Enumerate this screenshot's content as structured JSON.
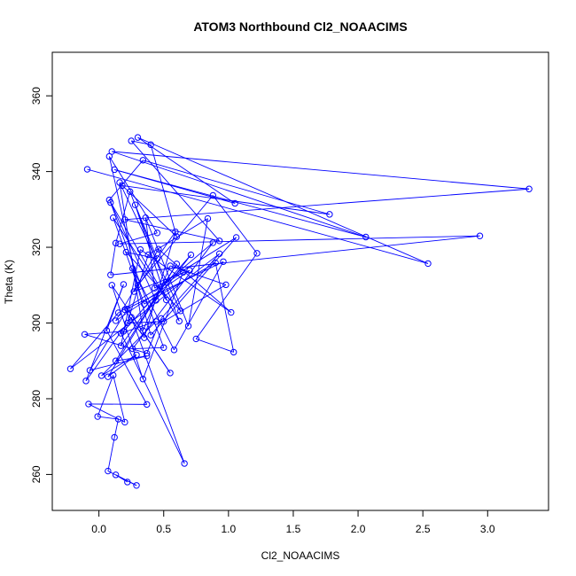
{
  "chart_data": {
    "type": "scatter",
    "title": "ATOM3 Northbound Cl2_NOAACIMS",
    "xlabel": "Cl2_NOAACIMS",
    "ylabel": "Theta (K)",
    "xlim": [
      -0.36,
      3.47
    ],
    "ylim": [
      250.5,
      371.5
    ],
    "xticks": [
      0.0,
      0.5,
      1.0,
      1.5,
      2.0,
      2.5,
      3.0
    ],
    "xtick_labels": [
      "0.0",
      "0.5",
      "1.0",
      "1.5",
      "2.0",
      "2.5",
      "3.0"
    ],
    "yticks": [
      260,
      280,
      300,
      320,
      340,
      360
    ],
    "ytick_labels": [
      "260",
      "280",
      "300",
      "320",
      "340",
      "360"
    ],
    "series_color": "#0000ff",
    "markers": "open circles connected by lines",
    "series": [
      {
        "points": [
          [
            -0.09,
            340.6
          ],
          [
            2.54,
            315.7
          ],
          [
            0.3,
            349.0
          ],
          [
            1.05,
            331.6
          ],
          [
            0.12,
            340.5
          ],
          [
            2.06,
            322.7
          ],
          [
            0.1,
            345.3
          ],
          [
            3.32,
            335.4
          ],
          [
            0.2,
            327.3
          ],
          [
            0.93,
            321.7
          ],
          [
            0.25,
            348.1
          ],
          [
            0.4,
            347.1
          ],
          [
            0.6,
            322.8
          ],
          [
            0.18,
            336.3
          ],
          [
            1.78,
            328.7
          ],
          [
            0.34,
            343.0
          ],
          [
            0.08,
            332.5
          ],
          [
            0.62,
            300.5
          ],
          [
            0.24,
            334.7
          ],
          [
            0.13,
            321.1
          ],
          [
            0.09,
            312.7
          ],
          [
            2.94,
            323.0
          ],
          [
            0.16,
            320.9
          ],
          [
            0.45,
            323.8
          ],
          [
            0.08,
            344.0
          ],
          [
            0.3,
            310.0
          ],
          [
            0.88,
            333.7
          ],
          [
            1.22,
            318.4
          ],
          [
            0.75,
            295.8
          ],
          [
            1.04,
            292.3
          ],
          [
            0.9,
            315.9
          ],
          [
            0.35,
            305.0
          ],
          [
            0.11,
            327.8
          ],
          [
            0.52,
            306.1
          ],
          [
            0.28,
            331.2
          ],
          [
            0.45,
            317.0
          ],
          [
            0.21,
            318.7
          ],
          [
            0.63,
            303.2
          ],
          [
            0.16,
            337.1
          ],
          [
            0.34,
            298.0
          ],
          [
            0.55,
            315.1
          ],
          [
            0.98,
            310.1
          ],
          [
            0.5,
            300.4
          ],
          [
            0.22,
            300.0
          ],
          [
            0.38,
            318.0
          ],
          [
            0.84,
            327.6
          ],
          [
            0.69,
            299.2
          ],
          [
            0.36,
            327.8
          ],
          [
            0.43,
            309.2
          ],
          [
            1.06,
            322.6
          ],
          [
            0.4,
            296.8
          ],
          [
            0.26,
            314.4
          ],
          [
            0.58,
            292.9
          ],
          [
            0.96,
            316.2
          ],
          [
            0.2,
            303.5
          ],
          [
            0.35,
            296.1
          ],
          [
            0.59,
            324.1
          ],
          [
            0.27,
            308.3
          ],
          [
            0.7,
            313.9
          ],
          [
            0.13,
            300.6
          ],
          [
            0.46,
            319.5
          ],
          [
            1.02,
            302.8
          ],
          [
            0.32,
            319.4
          ],
          [
            0.17,
            294.0
          ],
          [
            0.52,
            310.8
          ],
          [
            0.88,
            321.2
          ],
          [
            0.26,
            293.2
          ],
          [
            0.5,
            293.5
          ],
          [
            0.09,
            331.8
          ],
          [
            0.44,
            306.0
          ],
          [
            0.71,
            318.0
          ],
          [
            0.19,
            297.8
          ],
          [
            -0.11,
            297.0
          ],
          [
            0.37,
            292.0
          ],
          [
            0.48,
            301.2
          ],
          [
            0.93,
            318.3
          ],
          [
            -0.22,
            287.9
          ],
          [
            0.15,
            302.7
          ],
          [
            0.65,
            313.4
          ],
          [
            0.34,
            285.2
          ],
          [
            0.1,
            310.0
          ],
          [
            0.55,
            286.8
          ],
          [
            0.22,
            303.7
          ],
          [
            -0.07,
            287.5
          ],
          [
            0.37,
            291.3
          ],
          [
            0.13,
            290.0
          ],
          [
            0.6,
            315.6
          ],
          [
            0.07,
            285.8
          ],
          [
            0.29,
            291.6
          ],
          [
            0.02,
            286.1
          ],
          [
            0.44,
            300.4
          ],
          [
            0.17,
            297.3
          ],
          [
            0.66,
            262.9
          ],
          [
            0.25,
            301.5
          ],
          [
            -0.1,
            284.7
          ],
          [
            0.19,
            310.2
          ],
          [
            0.06,
            298.0
          ],
          [
            0.37,
            278.5
          ],
          [
            -0.08,
            278.6
          ],
          [
            0.2,
            273.8
          ],
          [
            0.11,
            286.2
          ],
          [
            -0.01,
            275.3
          ],
          [
            0.15,
            274.6
          ],
          [
            0.12,
            269.8
          ],
          [
            0.07,
            260.9
          ],
          [
            0.29,
            257.1
          ],
          [
            0.13,
            259.9
          ],
          [
            0.22,
            258.0
          ]
        ]
      }
    ]
  }
}
